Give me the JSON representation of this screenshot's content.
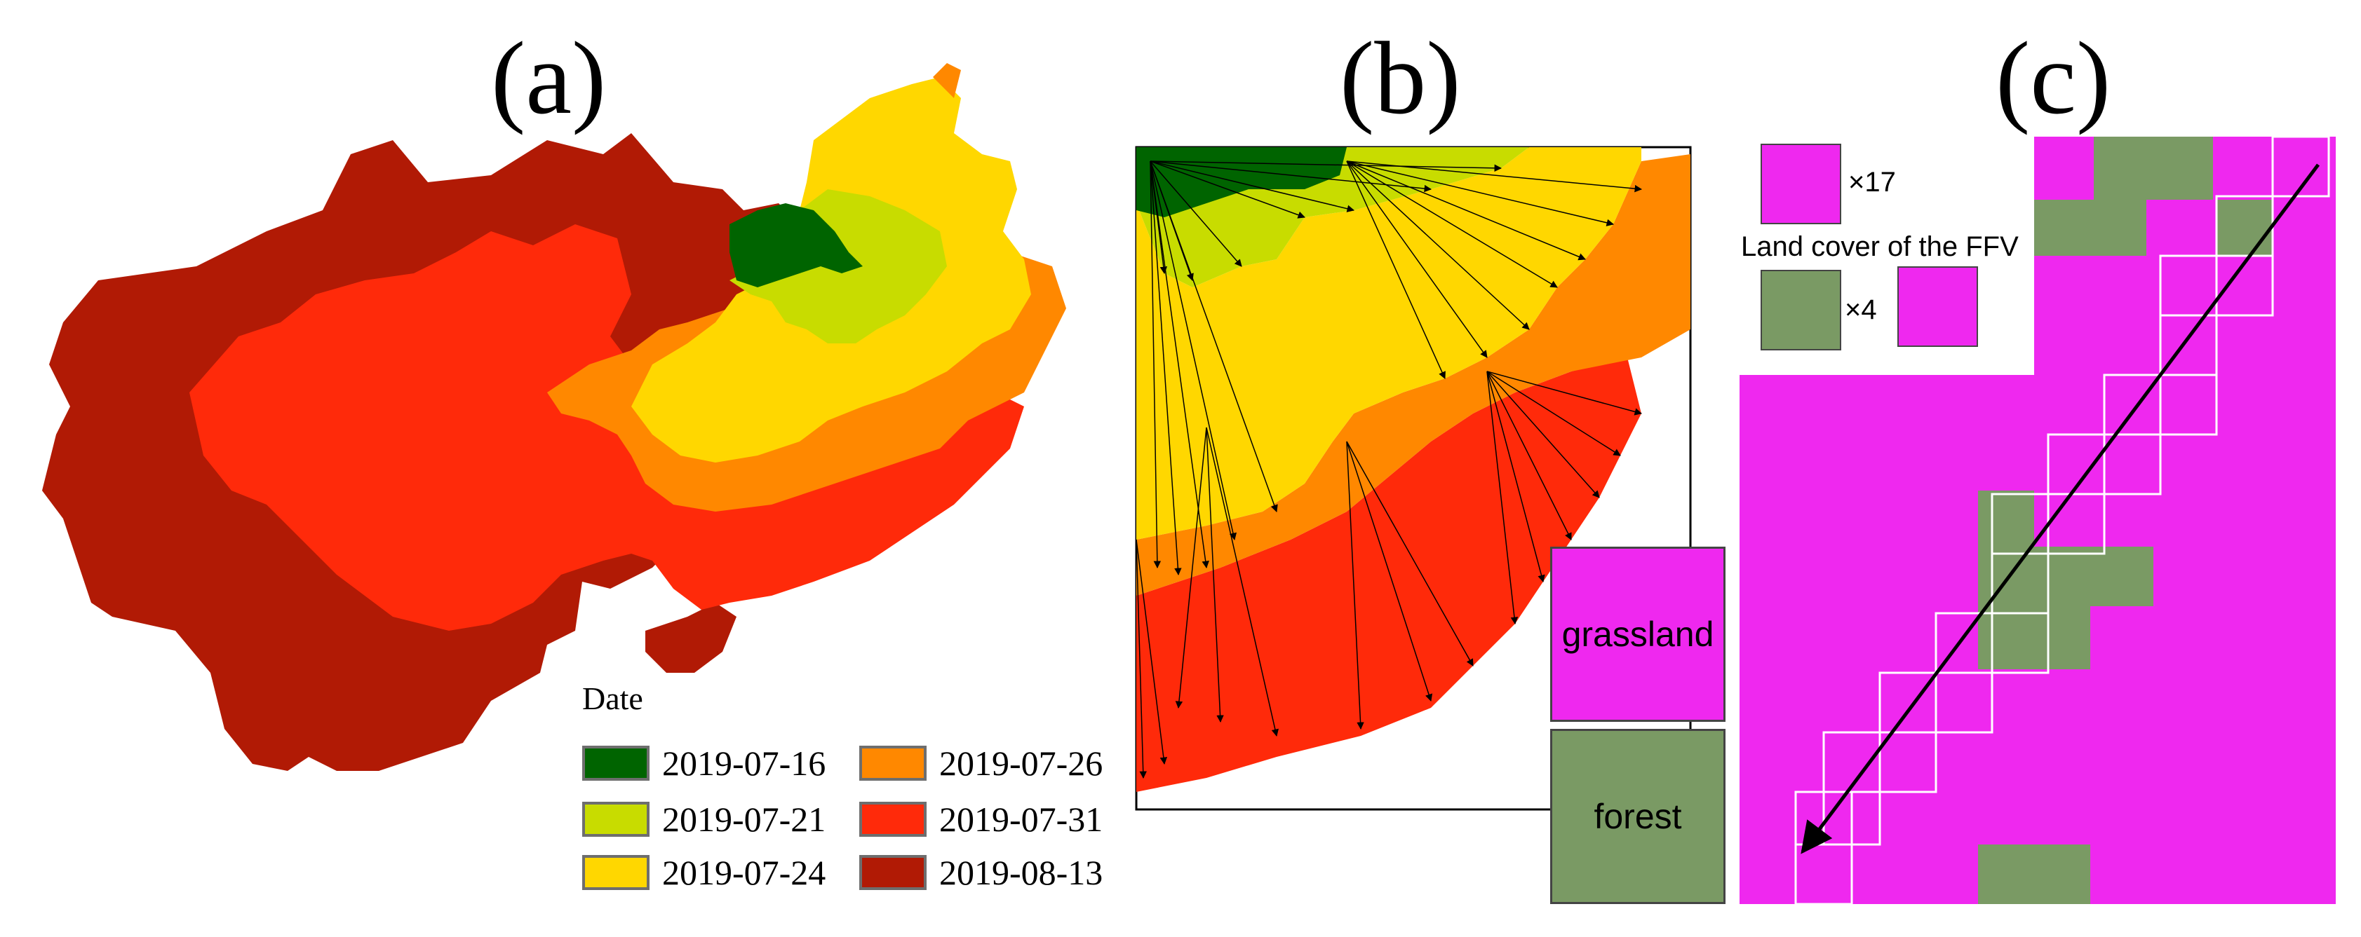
{
  "panels": {
    "a": {
      "label": "(a)"
    },
    "b": {
      "label": "(b)"
    },
    "c": {
      "label": "(c)"
    }
  },
  "legend": {
    "title": "Date",
    "items": [
      {
        "label": "2019-07-16",
        "color": "#006400"
      },
      {
        "label": "2019-07-21",
        "color": "#c8dc00"
      },
      {
        "label": "2019-07-24",
        "color": "#ffd700"
      },
      {
        "label": "2019-07-26",
        "color": "#ff8800"
      },
      {
        "label": "2019-07-31",
        "color": "#ff2a0a"
      },
      {
        "label": "2019-08-13",
        "color": "#b11a05"
      }
    ]
  },
  "land_cover": {
    "grassland": {
      "label": "grassland",
      "color": "#ef28ef"
    },
    "forest": {
      "label": "forest",
      "color": "#7a9a64"
    }
  },
  "ffv_inset": {
    "grassland_count": "×17",
    "title": "Land cover of the FFV",
    "forest_count": "×4"
  }
}
